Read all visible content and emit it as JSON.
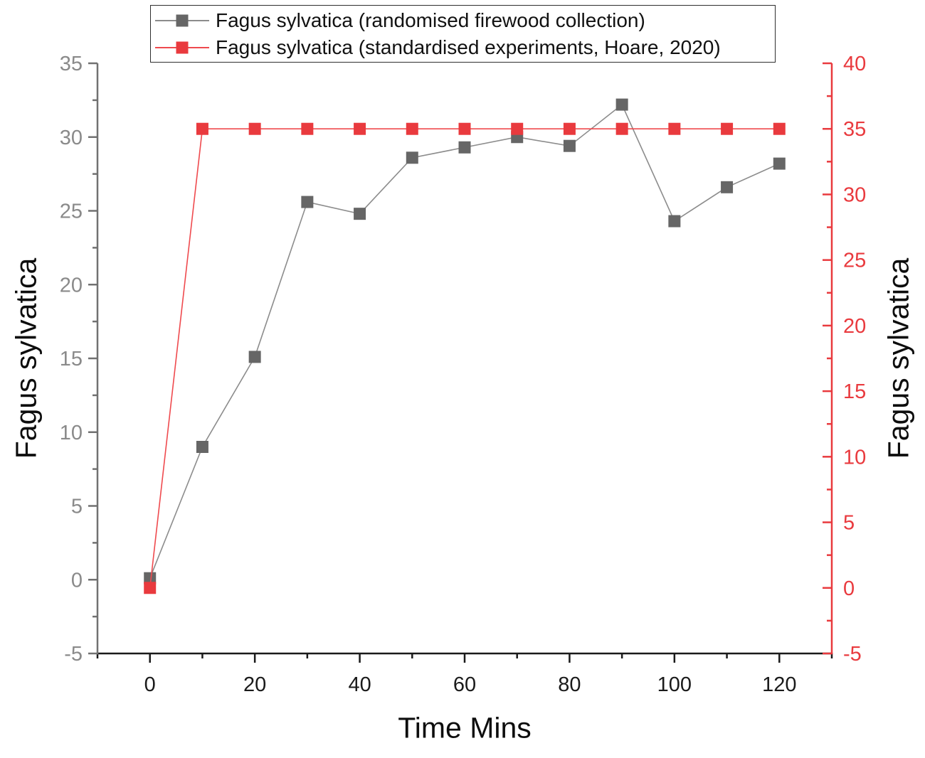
{
  "figure": {
    "background": "#ffffff"
  },
  "chart_data": {
    "type": "line",
    "title": "",
    "xlabel": "Time Mins",
    "ylabel_left": "Fagus sylvatica",
    "ylabel_right": "Fagus sylvatica",
    "grid": false,
    "legend_position": "top-center",
    "x": [
      0,
      10,
      20,
      30,
      40,
      50,
      60,
      70,
      80,
      90,
      100,
      110,
      120
    ],
    "series": [
      {
        "name": "Fagus sylvatica (randomised firewood collection)",
        "axis": "left",
        "marker": "square",
        "marker_color": "#666666",
        "line_color": "#8c8c8c",
        "values": [
          0.1,
          9.0,
          15.1,
          25.6,
          24.8,
          28.6,
          29.3,
          30.0,
          29.4,
          32.2,
          24.3,
          26.6,
          28.2
        ]
      },
      {
        "name": "Fagus sylvatica (standardised experiments, Hoare, 2020)",
        "axis": "right",
        "marker": "square",
        "marker_color": "#e93a3e",
        "line_color": "#ef4a4e",
        "values": [
          0,
          35,
          35,
          35,
          35,
          35,
          35,
          35,
          35,
          35,
          35,
          35,
          35
        ]
      }
    ],
    "x_axis": {
      "lim": [
        -10,
        130
      ],
      "major_ticks": [
        0,
        20,
        40,
        60,
        80,
        100,
        120
      ],
      "minor_step": 10,
      "color": "#1a1a1a",
      "label_color": "#1a1a1a"
    },
    "y_axis_left": {
      "lim": [
        -5,
        35
      ],
      "major_ticks": [
        -5,
        0,
        5,
        10,
        15,
        20,
        25,
        30,
        35
      ],
      "minor_step": 2.5,
      "color": "#717171",
      "label_color": "#8a8a8a"
    },
    "y_axis_right": {
      "lim": [
        -5,
        40
      ],
      "major_ticks": [
        -5,
        0,
        5,
        10,
        15,
        20,
        25,
        30,
        35,
        40
      ],
      "minor_step": 2.5,
      "color": "#e93a3e",
      "label_color": "#e93a3e"
    }
  }
}
